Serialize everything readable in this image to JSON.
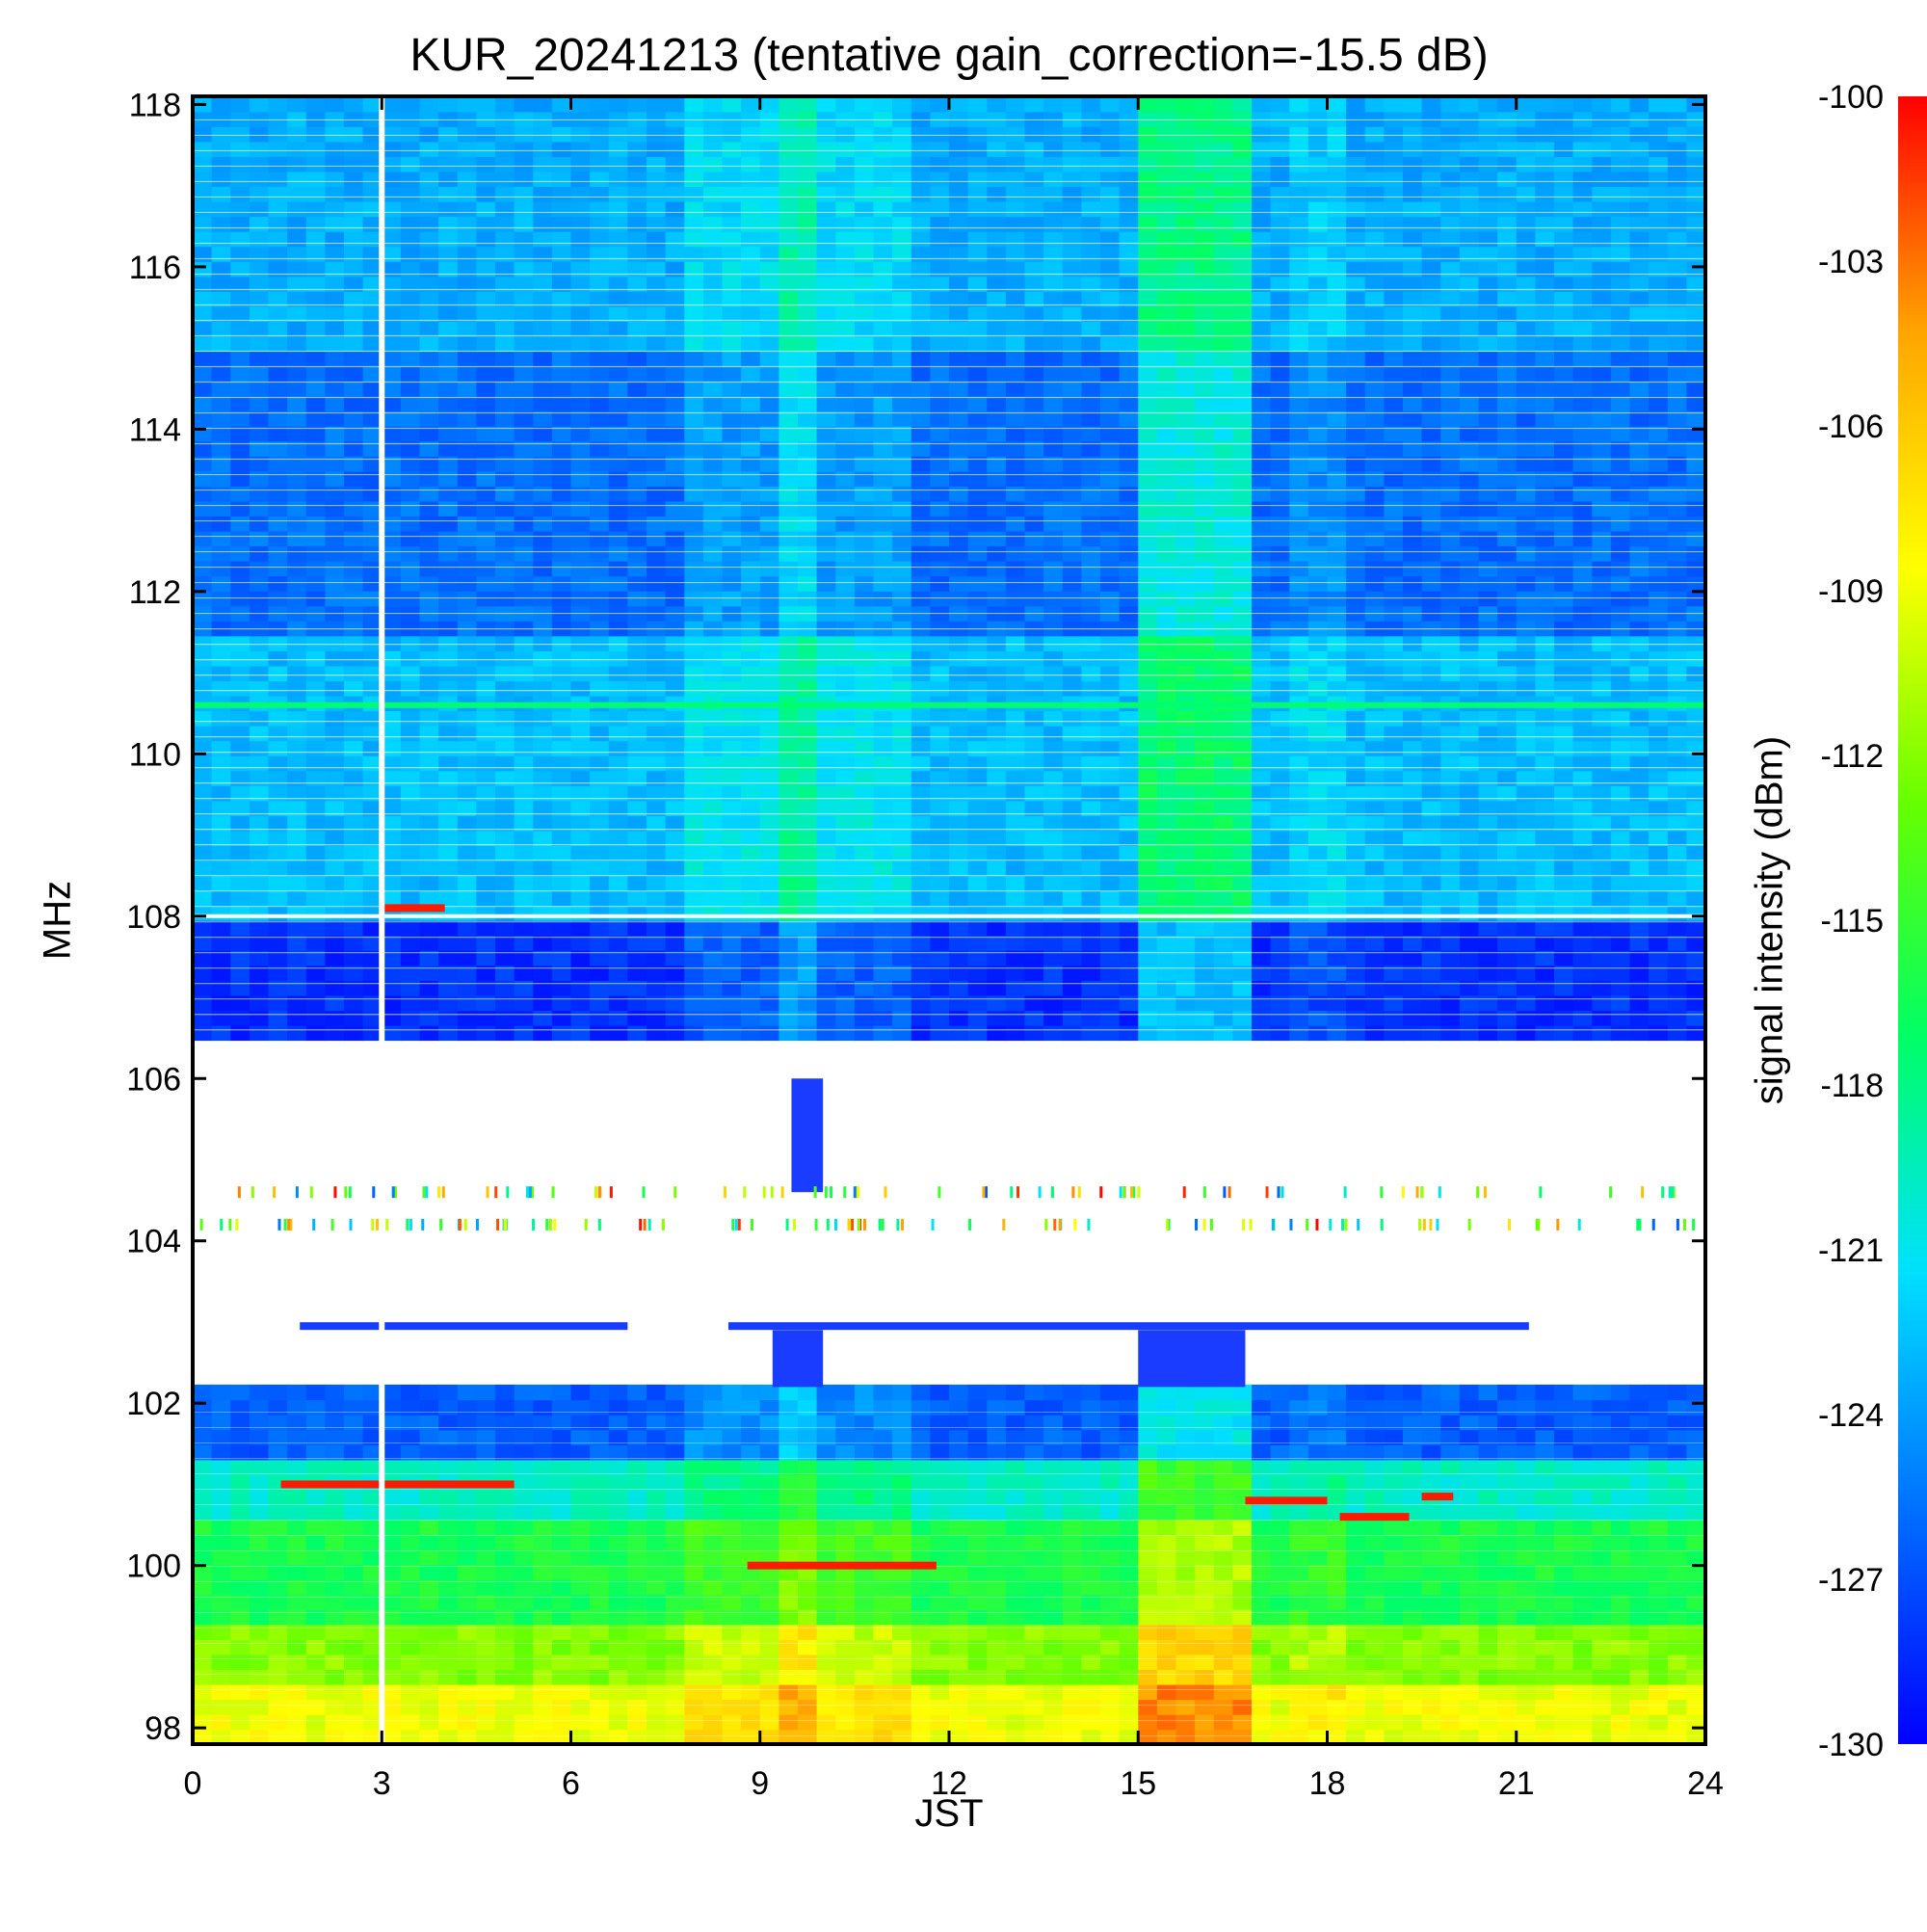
{
  "chart_data": {
    "type": "heatmap",
    "title": "KUR_20241213 (tentative gain_correction=-15.5 dB)",
    "xlabel": "JST",
    "ylabel": "MHz",
    "colorbar_label": "signal intensity (dBm)",
    "xlim": [
      0,
      24
    ],
    "ylim": [
      97.8,
      118.1
    ],
    "x_ticks": [
      0,
      3,
      6,
      9,
      12,
      15,
      18,
      21,
      24
    ],
    "y_ticks": [
      98,
      100,
      102,
      104,
      106,
      108,
      110,
      112,
      114,
      116,
      118
    ],
    "colorbar_ticks": [
      -100,
      -103,
      -106,
      -109,
      -112,
      -115,
      -118,
      -121,
      -124,
      -127,
      -130
    ],
    "colorbar_range": [
      -130,
      -100
    ],
    "colormap": [
      "#0000ff",
      "#0070ff",
      "#00e0ff",
      "#00ff66",
      "#66ff00",
      "#ffff00",
      "#ffa500",
      "#ff0000"
    ],
    "data_gap_hour": 3.0,
    "white_band_mhz": [
      102.2,
      106.5
    ],
    "separator_line_mhz": 108.0,
    "strong_line_mhz": 110.6,
    "bright_interval_hours": [
      15.0,
      16.7
    ],
    "bright_interval_2_hours": [
      9.2,
      10.0
    ],
    "segments_103mhz_hours": [
      [
        1.7,
        6.9
      ],
      [
        8.5,
        21.2
      ]
    ],
    "red_traces": [
      {
        "freq": 101.0,
        "x0": 1.4,
        "x1": 5.1
      },
      {
        "freq": 100.0,
        "x0": 8.8,
        "x1": 11.8
      },
      {
        "freq": 100.8,
        "x0": 16.7,
        "x1": 18.0
      },
      {
        "freq": 100.6,
        "x0": 18.2,
        "x1": 19.3
      },
      {
        "freq": 100.85,
        "x0": 19.5,
        "x1": 20.0
      },
      {
        "freq": 108.1,
        "x0": 3.0,
        "x1": 4.0
      }
    ]
  }
}
